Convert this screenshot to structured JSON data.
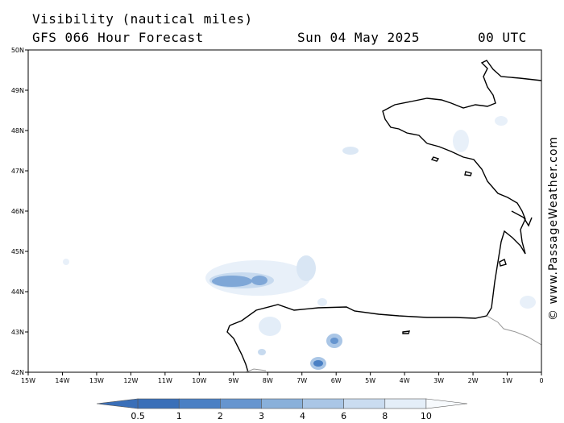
{
  "header": {
    "title": "Visibility (nautical miles)",
    "forecast": "GFS 066 Hour Forecast",
    "date": "Sun 04 May 2025",
    "time": "00 UTC"
  },
  "credit": "© www.PassageWeather.com",
  "map": {
    "lon_range": [
      -15,
      0
    ],
    "lat_range": [
      42,
      50
    ],
    "x_ticks": [
      "15W",
      "14W",
      "13W",
      "12W",
      "11W",
      "10W",
      "9W",
      "8W",
      "7W",
      "6W",
      "5W",
      "4W",
      "3W",
      "2W",
      "1W",
      "0"
    ],
    "y_ticks": [
      "42N",
      "43N",
      "44N",
      "45N",
      "46N",
      "47N",
      "48N",
      "49N",
      "50N"
    ],
    "region": "Bay of Biscay"
  },
  "colorbar": {
    "labels": [
      "0.5",
      "1",
      "2",
      "3",
      "4",
      "6",
      "8",
      "10"
    ],
    "colors": [
      "#3a6fb8",
      "#4a80c4",
      "#6695cf",
      "#89b0da",
      "#aac6e6",
      "#cadcf0",
      "#e4eef8",
      "#f7fafd"
    ]
  }
}
